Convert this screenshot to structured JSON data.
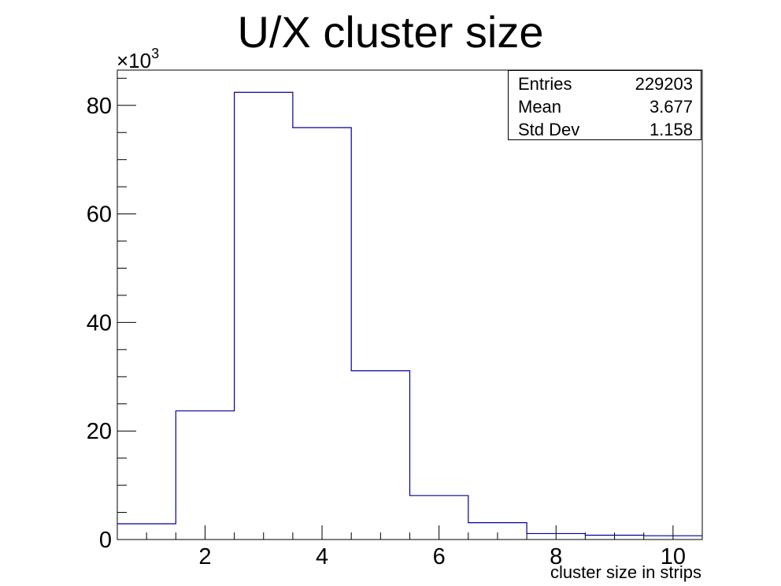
{
  "chart_data": {
    "type": "bar",
    "title": "U/X cluster size",
    "xlabel": "cluster size in strips",
    "ylabel": "",
    "y_exponent_label": "×10",
    "y_exponent_power": "3",
    "bin_edges": [
      0.5,
      1.5,
      2.5,
      3.5,
      4.5,
      5.5,
      6.5,
      7.5,
      8.5,
      9.5,
      10.5
    ],
    "values": [
      2.9,
      23.7,
      82.4,
      75.9,
      31.1,
      8.1,
      3.1,
      1.1,
      0.8,
      0.7
    ],
    "xlim": [
      0.5,
      10.5
    ],
    "ylim": [
      0,
      86.5
    ],
    "x_ticks": [
      2,
      4,
      6,
      8,
      10
    ],
    "x_tick_labels": [
      "2",
      "4",
      "6",
      "8",
      "10"
    ],
    "y_ticks": [
      0,
      20,
      40,
      60,
      80
    ],
    "y_tick_labels": [
      "0",
      "20",
      "40",
      "60",
      "80"
    ],
    "line_color": "#000099",
    "grid": false,
    "legend": "top-right",
    "stats": [
      {
        "label": "Entries",
        "value": "229203"
      },
      {
        "label": "Mean",
        "value": "3.677"
      },
      {
        "label": "Std Dev",
        "value": "1.158"
      }
    ]
  }
}
